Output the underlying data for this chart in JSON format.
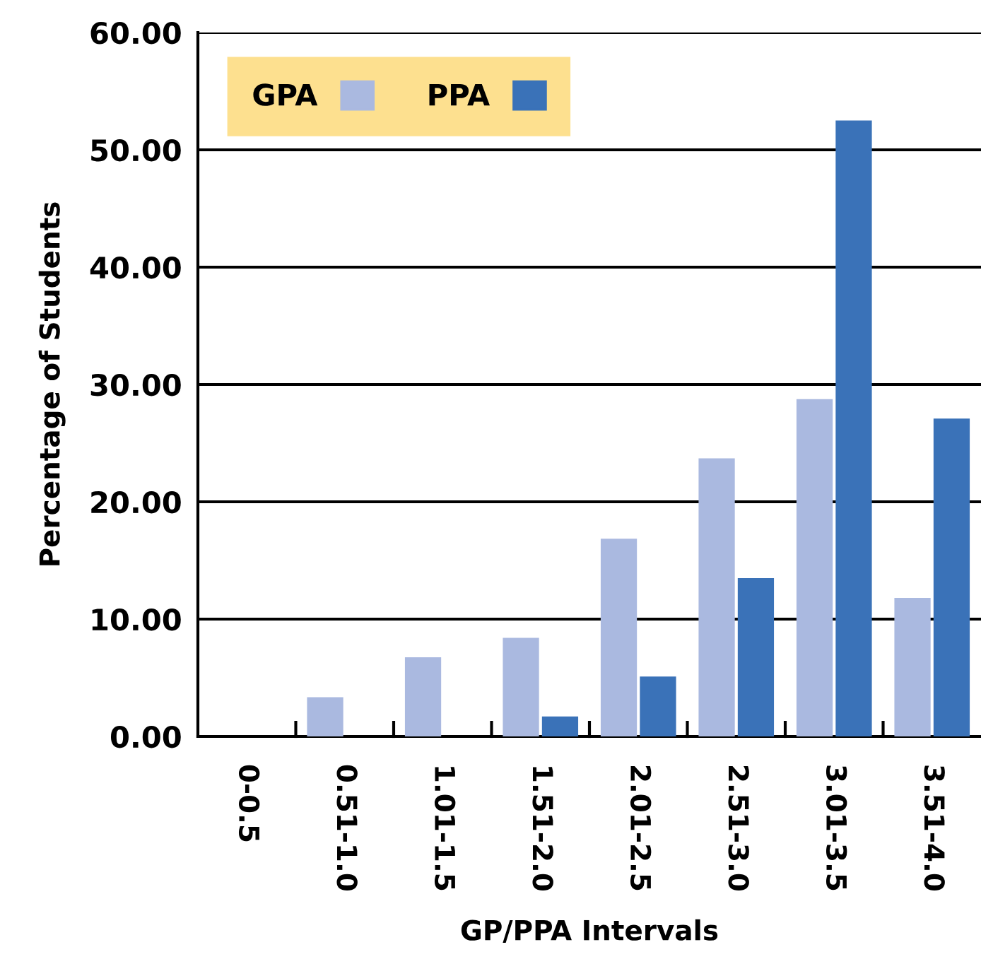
{
  "chart_data": {
    "type": "bar",
    "xlabel": "GP/PPA Intervals",
    "ylabel": "Percentage of Students",
    "categories": [
      "0-0.5",
      "0.51-1.0",
      "1.01-1.5",
      "1.51-2.0",
      "2.01-2.5",
      "2.51-3.0",
      "3.01-3.5",
      "3.51-4.0"
    ],
    "series": [
      {
        "name": "GPA",
        "color": "#aab9e0",
        "values": [
          0,
          3.35,
          6.75,
          8.4,
          16.85,
          23.7,
          28.75,
          11.8
        ]
      },
      {
        "name": "PPA",
        "color": "#3a72b8",
        "values": [
          0,
          0,
          0,
          1.7,
          5.1,
          13.5,
          52.5,
          27.1
        ]
      }
    ],
    "ylim": [
      0,
      60
    ],
    "yticks": [
      {
        "value": 0,
        "label": "0.00"
      },
      {
        "value": 10,
        "label": "10.00"
      },
      {
        "value": 20,
        "label": "20.00"
      },
      {
        "value": 30,
        "label": "30.00"
      },
      {
        "value": 40,
        "label": "40.00"
      },
      {
        "value": 50,
        "label": "50.00"
      },
      {
        "value": 60,
        "label": "60.00"
      }
    ],
    "grid": "y",
    "legend": "top left"
  }
}
